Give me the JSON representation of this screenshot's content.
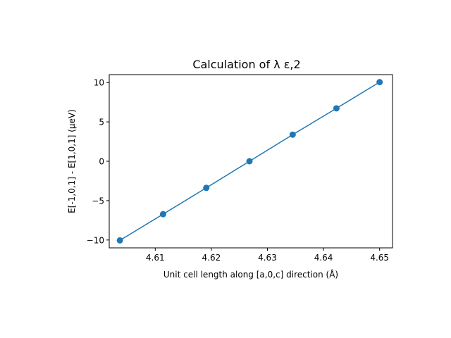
{
  "chart_data": {
    "type": "line",
    "title": "Calculation of λ ε,2",
    "xlabel": "Unit cell length along [a,0,c] direction (Å)",
    "ylabel": "E[-1,0,1] - E[1,0,1] (μeV)",
    "xlim": [
      4.6018,
      4.6523
    ],
    "ylim": [
      -11.0,
      11.0
    ],
    "xticks": [
      4.61,
      4.62,
      4.63,
      4.64,
      4.65
    ],
    "xtick_labels": [
      "4.61",
      "4.62",
      "4.63",
      "4.64",
      "4.65"
    ],
    "yticks": [
      -10,
      -5,
      0,
      5,
      10
    ],
    "ytick_labels": [
      "−10",
      "−5",
      "0",
      "5",
      "10"
    ],
    "grid": false,
    "series": [
      {
        "x": [
          4.6037,
          4.6114,
          4.6191,
          4.6268,
          4.6345,
          4.6423,
          4.65
        ],
        "y": [
          -10.05,
          -6.72,
          -3.38,
          0.0,
          3.38,
          6.72,
          10.05
        ],
        "color": "#1f77b4",
        "marker": "circle"
      }
    ]
  }
}
